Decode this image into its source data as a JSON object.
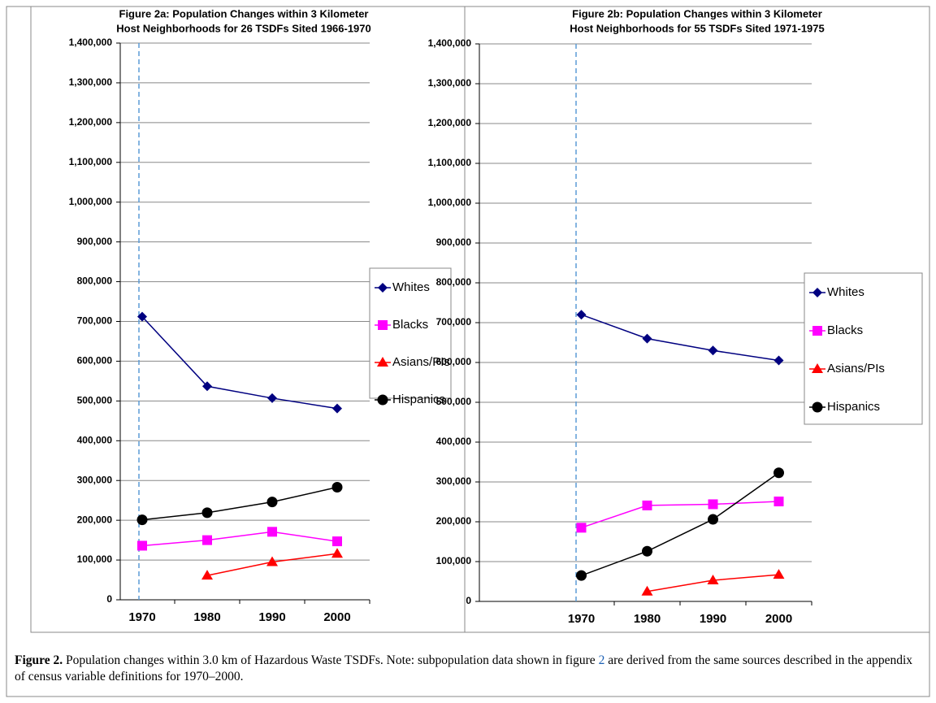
{
  "chart_data": [
    {
      "type": "line",
      "title": [
        "Figure 2a: Population Changes within 3 Kilometer",
        "Host Neighborhoods for 26 TSDFs Sited 1966-1970"
      ],
      "categories": [
        "1970",
        "1980",
        "1990",
        "2000"
      ],
      "series": [
        {
          "name": "Whites",
          "color": "#000080",
          "marker": "diamond",
          "values": [
            712000,
            537000,
            507000,
            481000
          ]
        },
        {
          "name": "Blacks",
          "color": "#ff00ff",
          "marker": "square",
          "values": [
            136000,
            150000,
            171000,
            147000
          ]
        },
        {
          "name": "Asians/PIs",
          "color": "#ff0000",
          "marker": "triangle",
          "values": [
            null,
            61000,
            95000,
            116000
          ]
        },
        {
          "name": "Hispanics",
          "color": "#000000",
          "marker": "circle",
          "values": [
            201000,
            219000,
            246000,
            283000
          ]
        }
      ],
      "ylim": [
        0,
        1400000
      ],
      "yticks": [
        0,
        {
          "value": 100000,
          "label": "100,000"
        },
        {
          "value": 200000,
          "label": "200,000"
        },
        {
          "value": 300000,
          "label": "300,000"
        },
        {
          "value": 400000,
          "label": "400,000"
        },
        {
          "value": 500000,
          "label": "500,000"
        },
        {
          "value": 600000,
          "label": "600,000"
        },
        {
          "value": 700000,
          "label": "700,000"
        },
        {
          "value": 800000,
          "label": "800,000"
        },
        {
          "value": 900000,
          "label": "900,000"
        },
        {
          "value": 1000000,
          "label": "1,000,000"
        },
        {
          "value": 1100000,
          "label": "1,100,000"
        },
        {
          "value": 1200000,
          "label": "1,200,000"
        },
        {
          "value": 1300000,
          "label": "1,300,000"
        },
        {
          "value": 1400000,
          "label": "1,400,000"
        }
      ],
      "grid": true,
      "legend": "right"
    },
    {
      "type": "line",
      "title": [
        "Figure 2b: Population Changes within 3 Kilometer",
        "Host Neighborhoods for 55 TSDFs Sited 1971-1975"
      ],
      "categories": [
        "1970",
        "1980",
        "1990",
        "2000"
      ],
      "series": [
        {
          "name": "Whites",
          "color": "#000080",
          "marker": "diamond",
          "values": [
            720000,
            660000,
            630000,
            605000
          ]
        },
        {
          "name": "Blacks",
          "color": "#ff00ff",
          "marker": "square",
          "values": [
            185000,
            241000,
            244000,
            251000
          ]
        },
        {
          "name": "Asians/PIs",
          "color": "#ff0000",
          "marker": "triangle",
          "values": [
            null,
            25000,
            53000,
            67000
          ]
        },
        {
          "name": "Hispanics",
          "color": "#000000",
          "marker": "circle",
          "values": [
            65000,
            126000,
            206000,
            323000
          ]
        }
      ],
      "ylim": [
        0,
        1400000
      ],
      "yticks": [
        0,
        {
          "value": 100000,
          "label": "100,000"
        },
        {
          "value": 200000,
          "label": "200,000"
        },
        {
          "value": 300000,
          "label": "300,000"
        },
        {
          "value": 400000,
          "label": "400,000"
        },
        {
          "value": 500000,
          "label": "500,000"
        },
        {
          "value": 600000,
          "label": "600,000"
        },
        {
          "value": 700000,
          "label": "700,000"
        },
        {
          "value": 800000,
          "label": "800,000"
        },
        {
          "value": 900000,
          "label": "900,000"
        },
        {
          "value": 1000000,
          "label": "1,000,000"
        },
        {
          "value": 1100000,
          "label": "1,100,000"
        },
        {
          "value": 1200000,
          "label": "1,200,000"
        },
        {
          "value": 1300000,
          "label": "1,300,000"
        },
        {
          "value": 1400000,
          "label": "1,400,000"
        }
      ],
      "grid": true,
      "legend": "right"
    }
  ],
  "caption": {
    "label": "Figure 2.",
    "text": [
      "Population changes within 3.0 km of Hazardous Waste TSDFs. Note: subpopulation data shown in figure ",
      "2",
      " are derived from the same sources described in the appendix of census variable definitions for 1970–2000."
    ]
  }
}
